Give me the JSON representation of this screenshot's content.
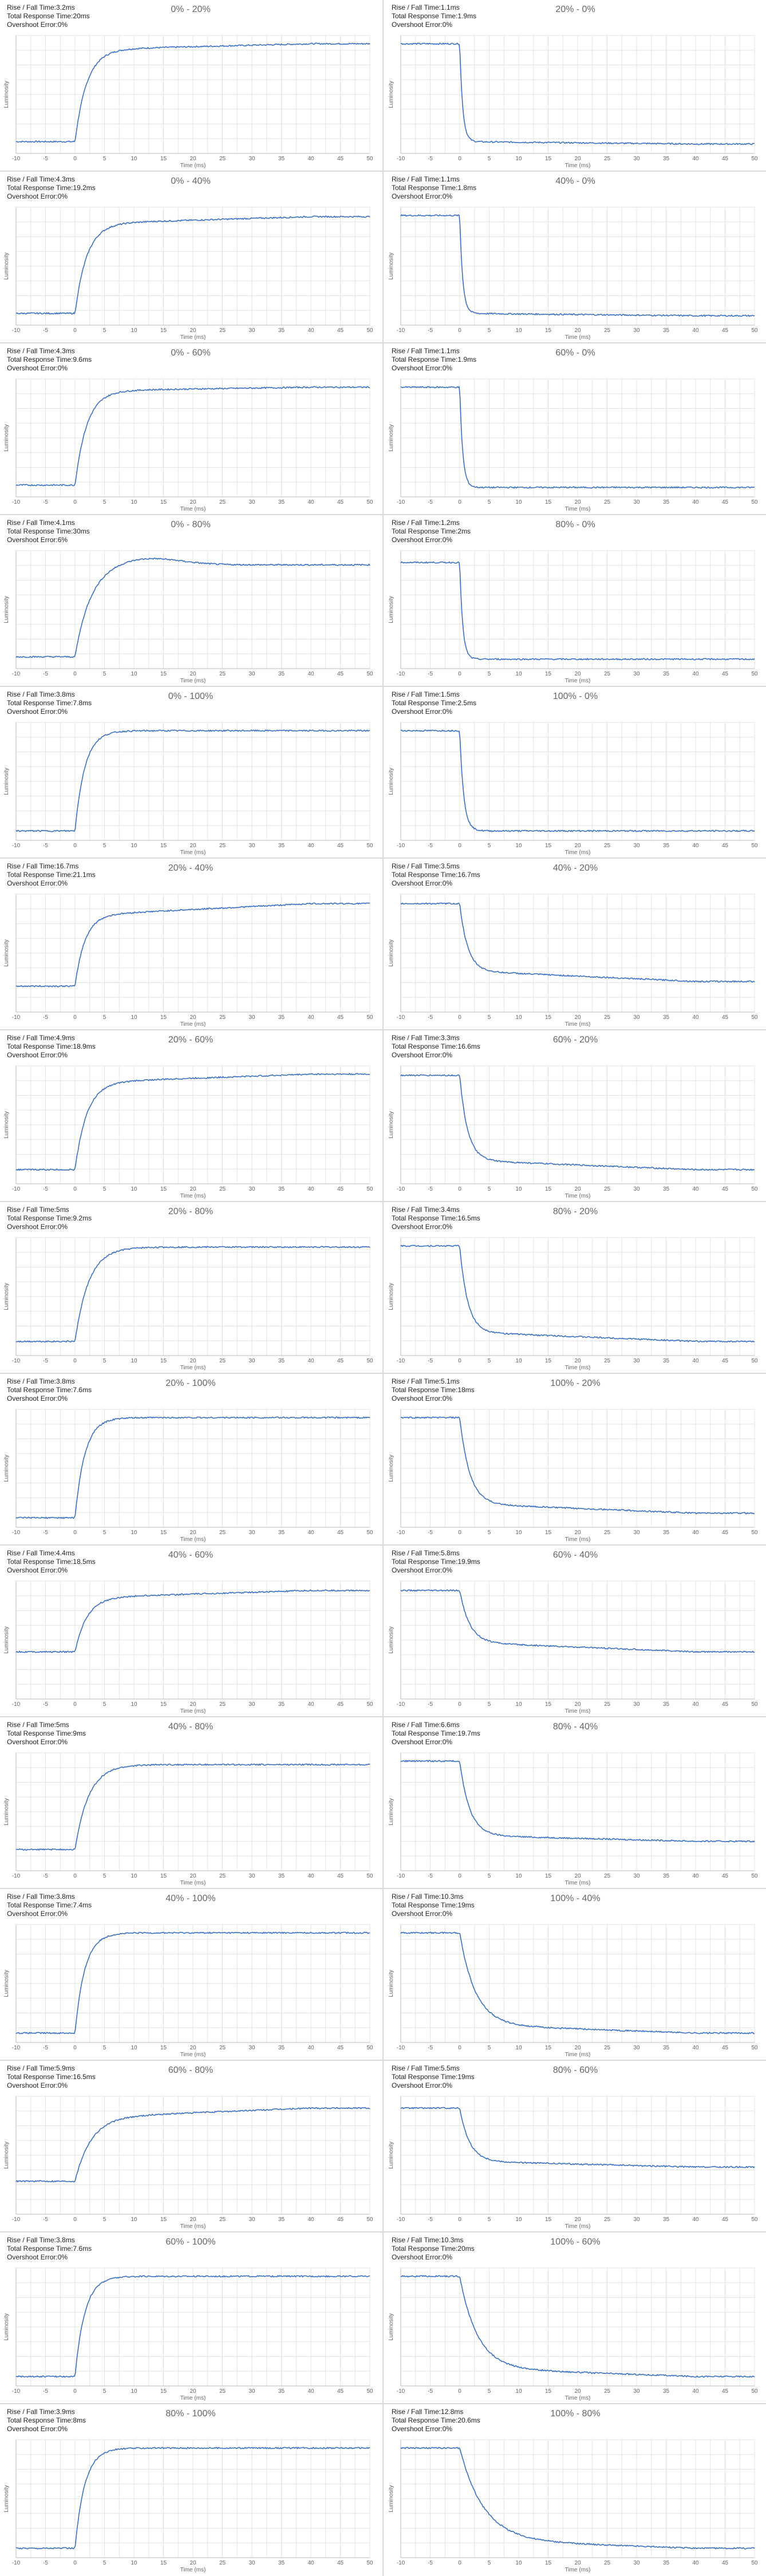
{
  "colors": {
    "line": "#3a6fc4",
    "grid": "#e3e3e3",
    "axis": "#bdbdbd",
    "text": "#666666"
  },
  "labels": {
    "rise_fall": "Rise / Fall Time:",
    "total_response": "Total Response Time:",
    "overshoot": "Overshoot Error:"
  },
  "chart_data": [
    {
      "type": "line",
      "title": "0% - 20%",
      "rise_fall": "3.2ms",
      "total_response": "20ms",
      "overshoot": "0%",
      "xlabel": "Time (ms)",
      "ylabel": "Luminosity",
      "xlim": [
        -10,
        50
      ],
      "xticks": [
        -10,
        -5,
        0,
        5,
        10,
        15,
        20,
        25,
        30,
        35,
        40,
        45,
        50
      ],
      "y_start": 0.1,
      "y_end": 0.88,
      "y_final": 0.93,
      "settle_ms": 6,
      "overshoot_peak": 0
    },
    {
      "type": "line",
      "title": "20% - 0%",
      "rise_fall": "1.1ms",
      "total_response": "1.9ms",
      "overshoot": "0%",
      "xlabel": "Time (ms)",
      "ylabel": "Luminosity",
      "xlim": [
        -10,
        50
      ],
      "xticks": [
        -10,
        -5,
        0,
        5,
        10,
        15,
        20,
        25,
        30,
        35,
        40,
        45,
        50
      ],
      "y_start": 0.93,
      "y_end": 0.1,
      "y_final": 0.08,
      "settle_ms": 1.5,
      "overshoot_peak": 0
    },
    {
      "type": "line",
      "title": "0% - 40%",
      "rise_fall": "4.3ms",
      "total_response": "19.2ms",
      "overshoot": "0%",
      "xlabel": "Time (ms)",
      "ylabel": "Luminosity",
      "xlim": [
        -10,
        50
      ],
      "xticks": [
        -10,
        -5,
        0,
        5,
        10,
        15,
        20,
        25,
        30,
        35,
        40,
        45,
        50
      ],
      "y_start": 0.1,
      "y_end": 0.86,
      "y_final": 0.92,
      "settle_ms": 6,
      "overshoot_peak": 0
    },
    {
      "type": "line",
      "title": "40% - 0%",
      "rise_fall": "1.1ms",
      "total_response": "1.8ms",
      "overshoot": "0%",
      "xlabel": "Time (ms)",
      "ylabel": "Luminosity",
      "xlim": [
        -10,
        50
      ],
      "xticks": [
        -10,
        -5,
        0,
        5,
        10,
        15,
        20,
        25,
        30,
        35,
        40,
        45,
        50
      ],
      "y_start": 0.93,
      "y_end": 0.1,
      "y_final": 0.08,
      "settle_ms": 1.5,
      "overshoot_peak": 0
    },
    {
      "type": "line",
      "title": "0% - 60%",
      "rise_fall": "4.3ms",
      "total_response": "9.6ms",
      "overshoot": "0%",
      "xlabel": "Time (ms)",
      "ylabel": "Luminosity",
      "xlim": [
        -10,
        50
      ],
      "xticks": [
        -10,
        -5,
        0,
        5,
        10,
        15,
        20,
        25,
        30,
        35,
        40,
        45,
        50
      ],
      "y_start": 0.1,
      "y_end": 0.9,
      "y_final": 0.93,
      "settle_ms": 6,
      "overshoot_peak": 0
    },
    {
      "type": "line",
      "title": "60% - 0%",
      "rise_fall": "1.1ms",
      "total_response": "1.9ms",
      "overshoot": "0%",
      "xlabel": "Time (ms)",
      "ylabel": "Luminosity",
      "xlim": [
        -10,
        50
      ],
      "xticks": [
        -10,
        -5,
        0,
        5,
        10,
        15,
        20,
        25,
        30,
        35,
        40,
        45,
        50
      ],
      "y_start": 0.93,
      "y_end": 0.08,
      "y_final": 0.08,
      "settle_ms": 1.5,
      "overshoot_peak": 0
    },
    {
      "type": "line",
      "title": "0% - 80%",
      "rise_fall": "4.1ms",
      "total_response": "30ms",
      "overshoot": "6%",
      "xlabel": "Time (ms)",
      "ylabel": "Luminosity",
      "xlim": [
        -10,
        50
      ],
      "xticks": [
        -10,
        -5,
        0,
        5,
        10,
        15,
        20,
        25,
        30,
        35,
        40,
        45,
        50
      ],
      "y_start": 0.1,
      "y_end": 0.88,
      "y_final": 0.88,
      "settle_ms": 8,
      "overshoot_peak": 0.06
    },
    {
      "type": "line",
      "title": "80% - 0%",
      "rise_fall": "1.2ms",
      "total_response": "2ms",
      "overshoot": "0%",
      "xlabel": "Time (ms)",
      "ylabel": "Luminosity",
      "xlim": [
        -10,
        50
      ],
      "xticks": [
        -10,
        -5,
        0,
        5,
        10,
        15,
        20,
        25,
        30,
        35,
        40,
        45,
        50
      ],
      "y_start": 0.9,
      "y_end": 0.08,
      "y_final": 0.08,
      "settle_ms": 1.5,
      "overshoot_peak": 0
    },
    {
      "type": "line",
      "title": "0% - 100%",
      "rise_fall": "3.8ms",
      "total_response": "7.8ms",
      "overshoot": "0%",
      "xlabel": "Time (ms)",
      "ylabel": "Luminosity",
      "xlim": [
        -10,
        50
      ],
      "xticks": [
        -10,
        -5,
        0,
        5,
        10,
        15,
        20,
        25,
        30,
        35,
        40,
        45,
        50
      ],
      "y_start": 0.08,
      "y_end": 0.93,
      "y_final": 0.93,
      "settle_ms": 5,
      "overshoot_peak": 0
    },
    {
      "type": "line",
      "title": "100% - 0%",
      "rise_fall": "1.5ms",
      "total_response": "2.5ms",
      "overshoot": "0%",
      "xlabel": "Time (ms)",
      "ylabel": "Luminosity",
      "xlim": [
        -10,
        50
      ],
      "xticks": [
        -10,
        -5,
        0,
        5,
        10,
        15,
        20,
        25,
        30,
        35,
        40,
        45,
        50
      ],
      "y_start": 0.93,
      "y_end": 0.08,
      "y_final": 0.08,
      "settle_ms": 2,
      "overshoot_peak": 0
    },
    {
      "type": "line",
      "title": "20% - 40%",
      "rise_fall": "16.7ms",
      "total_response": "21.1ms",
      "overshoot": "0%",
      "xlabel": "Time (ms)",
      "ylabel": "Luminosity",
      "xlim": [
        -10,
        50
      ],
      "xticks": [
        -10,
        -5,
        0,
        5,
        10,
        15,
        20,
        25,
        30,
        35,
        40,
        45,
        50
      ],
      "y_start": 0.22,
      "y_end": 0.82,
      "y_final": 0.92,
      "settle_ms": 5,
      "overshoot_peak": 0
    },
    {
      "type": "line",
      "title": "40% - 20%",
      "rise_fall": "3.5ms",
      "total_response": "16.7ms",
      "overshoot": "0%",
      "xlabel": "Time (ms)",
      "ylabel": "Luminosity",
      "xlim": [
        -10,
        50
      ],
      "xticks": [
        -10,
        -5,
        0,
        5,
        10,
        15,
        20,
        25,
        30,
        35,
        40,
        45,
        50
      ],
      "y_start": 0.92,
      "y_end": 0.35,
      "y_final": 0.26,
      "settle_ms": 4,
      "overshoot_peak": 0
    },
    {
      "type": "line",
      "title": "20% - 60%",
      "rise_fall": "4.9ms",
      "total_response": "18.9ms",
      "overshoot": "0%",
      "xlabel": "Time (ms)",
      "ylabel": "Luminosity",
      "xlim": [
        -10,
        50
      ],
      "xticks": [
        -10,
        -5,
        0,
        5,
        10,
        15,
        20,
        25,
        30,
        35,
        40,
        45,
        50
      ],
      "y_start": 0.12,
      "y_end": 0.86,
      "y_final": 0.93,
      "settle_ms": 6,
      "overshoot_peak": 0
    },
    {
      "type": "line",
      "title": "60% - 20%",
      "rise_fall": "3.3ms",
      "total_response": "16.6ms",
      "overshoot": "0%",
      "xlabel": "Time (ms)",
      "ylabel": "Luminosity",
      "xlim": [
        -10,
        50
      ],
      "xticks": [
        -10,
        -5,
        0,
        5,
        10,
        15,
        20,
        25,
        30,
        35,
        40,
        45,
        50
      ],
      "y_start": 0.92,
      "y_end": 0.2,
      "y_final": 0.12,
      "settle_ms": 4,
      "overshoot_peak": 0
    },
    {
      "type": "line",
      "title": "20% - 80%",
      "rise_fall": "5ms",
      "total_response": "9.2ms",
      "overshoot": "0%",
      "xlabel": "Time (ms)",
      "ylabel": "Luminosity",
      "xlim": [
        -10,
        50
      ],
      "xticks": [
        -10,
        -5,
        0,
        5,
        10,
        15,
        20,
        25,
        30,
        35,
        40,
        45,
        50
      ],
      "y_start": 0.12,
      "y_end": 0.92,
      "y_final": 0.92,
      "settle_ms": 7,
      "overshoot_peak": 0
    },
    {
      "type": "line",
      "title": "80% - 20%",
      "rise_fall": "3.4ms",
      "total_response": "16.5ms",
      "overshoot": "0%",
      "xlabel": "Time (ms)",
      "ylabel": "Luminosity",
      "xlim": [
        -10,
        50
      ],
      "xticks": [
        -10,
        -5,
        0,
        5,
        10,
        15,
        20,
        25,
        30,
        35,
        40,
        45,
        50
      ],
      "y_start": 0.93,
      "y_end": 0.2,
      "y_final": 0.12,
      "settle_ms": 4,
      "overshoot_peak": 0
    },
    {
      "type": "line",
      "title": "20% - 100%",
      "rise_fall": "3.8ms",
      "total_response": "7.6ms",
      "overshoot": "0%",
      "xlabel": "Time (ms)",
      "ylabel": "Luminosity",
      "xlim": [
        -10,
        50
      ],
      "xticks": [
        -10,
        -5,
        0,
        5,
        10,
        15,
        20,
        25,
        30,
        35,
        40,
        45,
        50
      ],
      "y_start": 0.08,
      "y_end": 0.93,
      "y_final": 0.93,
      "settle_ms": 5,
      "overshoot_peak": 0
    },
    {
      "type": "line",
      "title": "100% - 20%",
      "rise_fall": "5.1ms",
      "total_response": "18ms",
      "overshoot": "0%",
      "xlabel": "Time (ms)",
      "ylabel": "Luminosity",
      "xlim": [
        -10,
        50
      ],
      "xticks": [
        -10,
        -5,
        0,
        5,
        10,
        15,
        20,
        25,
        30,
        35,
        40,
        45,
        50
      ],
      "y_start": 0.93,
      "y_end": 0.2,
      "y_final": 0.12,
      "settle_ms": 5,
      "overshoot_peak": 0
    },
    {
      "type": "line",
      "title": "40% - 60%",
      "rise_fall": "4.4ms",
      "total_response": "18.5ms",
      "overshoot": "0%",
      "xlabel": "Time (ms)",
      "ylabel": "Luminosity",
      "xlim": [
        -10,
        50
      ],
      "xticks": [
        -10,
        -5,
        0,
        5,
        10,
        15,
        20,
        25,
        30,
        35,
        40,
        45,
        50
      ],
      "y_start": 0.4,
      "y_end": 0.86,
      "y_final": 0.92,
      "settle_ms": 6,
      "overshoot_peak": 0
    },
    {
      "type": "line",
      "title": "60% - 40%",
      "rise_fall": "5.8ms",
      "total_response": "19.9ms",
      "overshoot": "0%",
      "xlabel": "Time (ms)",
      "ylabel": "Luminosity",
      "xlim": [
        -10,
        50
      ],
      "xticks": [
        -10,
        -5,
        0,
        5,
        10,
        15,
        20,
        25,
        30,
        35,
        40,
        45,
        50
      ],
      "y_start": 0.92,
      "y_end": 0.48,
      "y_final": 0.4,
      "settle_ms": 5,
      "overshoot_peak": 0
    },
    {
      "type": "line",
      "title": "40% - 80%",
      "rise_fall": "5ms",
      "total_response": "9ms",
      "overshoot": "0%",
      "xlabel": "Time (ms)",
      "ylabel": "Luminosity",
      "xlim": [
        -10,
        50
      ],
      "xticks": [
        -10,
        -5,
        0,
        5,
        10,
        15,
        20,
        25,
        30,
        35,
        40,
        45,
        50
      ],
      "y_start": 0.18,
      "y_end": 0.9,
      "y_final": 0.9,
      "settle_ms": 7,
      "overshoot_peak": 0
    },
    {
      "type": "line",
      "title": "80% - 40%",
      "rise_fall": "6.6ms",
      "total_response": "19.7ms",
      "overshoot": "0%",
      "xlabel": "Time (ms)",
      "ylabel": "Luminosity",
      "xlim": [
        -10,
        50
      ],
      "xticks": [
        -10,
        -5,
        0,
        5,
        10,
        15,
        20,
        25,
        30,
        35,
        40,
        45,
        50
      ],
      "y_start": 0.93,
      "y_end": 0.3,
      "y_final": 0.25,
      "settle_ms": 5,
      "overshoot_peak": 0
    },
    {
      "type": "line",
      "title": "40% - 100%",
      "rise_fall": "3.8ms",
      "total_response": "7.4ms",
      "overshoot": "0%",
      "xlabel": "Time (ms)",
      "ylabel": "Luminosity",
      "xlim": [
        -10,
        50
      ],
      "xticks": [
        -10,
        -5,
        0,
        5,
        10,
        15,
        20,
        25,
        30,
        35,
        40,
        45,
        50
      ],
      "y_start": 0.08,
      "y_end": 0.93,
      "y_final": 0.93,
      "settle_ms": 5,
      "overshoot_peak": 0
    },
    {
      "type": "line",
      "title": "100% - 40%",
      "rise_fall": "10.3ms",
      "total_response": "19ms",
      "overshoot": "0%",
      "xlabel": "Time (ms)",
      "ylabel": "Luminosity",
      "xlim": [
        -10,
        50
      ],
      "xticks": [
        -10,
        -5,
        0,
        5,
        10,
        15,
        20,
        25,
        30,
        35,
        40,
        45,
        50
      ],
      "y_start": 0.93,
      "y_end": 0.15,
      "y_final": 0.08,
      "settle_ms": 8,
      "overshoot_peak": 0
    },
    {
      "type": "line",
      "title": "60% - 80%",
      "rise_fall": "5.9ms",
      "total_response": "16.5ms",
      "overshoot": "0%",
      "xlabel": "Time (ms)",
      "ylabel": "Luminosity",
      "xlim": [
        -10,
        50
      ],
      "xticks": [
        -10,
        -5,
        0,
        5,
        10,
        15,
        20,
        25,
        30,
        35,
        40,
        45,
        50
      ],
      "y_start": 0.28,
      "y_end": 0.82,
      "y_final": 0.9,
      "settle_ms": 8,
      "overshoot_peak": 0
    },
    {
      "type": "line",
      "title": "80% - 60%",
      "rise_fall": "5.5ms",
      "total_response": "19ms",
      "overshoot": "0%",
      "xlabel": "Time (ms)",
      "ylabel": "Luminosity",
      "xlim": [
        -10,
        50
      ],
      "xticks": [
        -10,
        -5,
        0,
        5,
        10,
        15,
        20,
        25,
        30,
        35,
        40,
        45,
        50
      ],
      "y_start": 0.9,
      "y_end": 0.45,
      "y_final": 0.4,
      "settle_ms": 5,
      "overshoot_peak": 0
    },
    {
      "type": "line",
      "title": "60% - 100%",
      "rise_fall": "3.8ms",
      "total_response": "7.6ms",
      "overshoot": "0%",
      "xlabel": "Time (ms)",
      "ylabel": "Luminosity",
      "xlim": [
        -10,
        50
      ],
      "xticks": [
        -10,
        -5,
        0,
        5,
        10,
        15,
        20,
        25,
        30,
        35,
        40,
        45,
        50
      ],
      "y_start": 0.08,
      "y_end": 0.93,
      "y_final": 0.93,
      "settle_ms": 5,
      "overshoot_peak": 0
    },
    {
      "type": "line",
      "title": "100% - 60%",
      "rise_fall": "10.3ms",
      "total_response": "20ms",
      "overshoot": "0%",
      "xlabel": "Time (ms)",
      "ylabel": "Luminosity",
      "xlim": [
        -10,
        50
      ],
      "xticks": [
        -10,
        -5,
        0,
        5,
        10,
        15,
        20,
        25,
        30,
        35,
        40,
        45,
        50
      ],
      "y_start": 0.93,
      "y_end": 0.15,
      "y_final": 0.08,
      "settle_ms": 9,
      "overshoot_peak": 0
    },
    {
      "type": "line",
      "title": "80% - 100%",
      "rise_fall": "3.9ms",
      "total_response": "8ms",
      "overshoot": "0%",
      "xlabel": "Time (ms)",
      "ylabel": "Luminosity",
      "xlim": [
        -10,
        50
      ],
      "xticks": [
        -10,
        -5,
        0,
        5,
        10,
        15,
        20,
        25,
        30,
        35,
        40,
        45,
        50
      ],
      "y_start": 0.08,
      "y_end": 0.93,
      "y_final": 0.93,
      "settle_ms": 5,
      "overshoot_peak": 0
    },
    {
      "type": "line",
      "title": "100% - 80%",
      "rise_fall": "12.8ms",
      "total_response": "20.6ms",
      "overshoot": "0%",
      "xlabel": "Time (ms)",
      "ylabel": "Luminosity",
      "xlim": [
        -10,
        50
      ],
      "xticks": [
        -10,
        -5,
        0,
        5,
        10,
        15,
        20,
        25,
        30,
        35,
        40,
        45,
        50
      ],
      "y_start": 0.93,
      "y_end": 0.15,
      "y_final": 0.08,
      "settle_ms": 12,
      "overshoot_peak": 0
    }
  ]
}
